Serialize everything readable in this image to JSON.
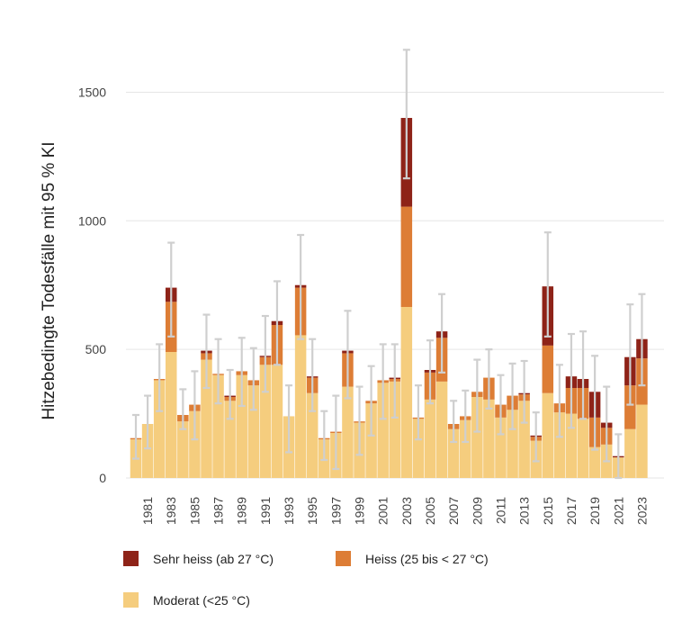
{
  "chart_data": {
    "type": "bar",
    "stacked": true,
    "ylabel": "Hitzebedingte Todesfälle mit 95 % KI",
    "ylim": [
      0,
      1650
    ],
    "yticks": [
      0,
      500,
      1000,
      1500
    ],
    "grid": true,
    "legend_position": "bottom",
    "x": [
      1980,
      1981,
      1982,
      1983,
      1984,
      1985,
      1986,
      1987,
      1988,
      1989,
      1990,
      1991,
      1992,
      1993,
      1994,
      1995,
      1996,
      1997,
      1998,
      1999,
      2000,
      2001,
      2002,
      2003,
      2004,
      2005,
      2006,
      2007,
      2008,
      2009,
      2010,
      2011,
      2012,
      2013,
      2014,
      2015,
      2016,
      2017,
      2018,
      2019,
      2020,
      2021,
      2022,
      2023
    ],
    "xtick_labels": [
      "1981",
      "1983",
      "1985",
      "1987",
      "1989",
      "1991",
      "1993",
      "1995",
      "1997",
      "1999",
      "2001",
      "2003",
      "2005",
      "2007",
      "2009",
      "2011",
      "2013",
      "2015",
      "2017",
      "2019",
      "2021",
      "2023"
    ],
    "series": [
      {
        "name": "Moderat (<25 °C)",
        "color": "#f5cd7e",
        "values": [
          150,
          210,
          380,
          490,
          220,
          260,
          460,
          400,
          300,
          400,
          360,
          440,
          440,
          240,
          555,
          330,
          150,
          175,
          355,
          215,
          290,
          370,
          375,
          665,
          230,
          305,
          375,
          190,
          225,
          315,
          305,
          235,
          265,
          300,
          145,
          330,
          255,
          250,
          230,
          120,
          130,
          80,
          190,
          285
        ]
      },
      {
        "name": "Heiss (25 bis < 27 °C)",
        "color": "#dd7d35",
        "values": [
          5,
          0,
          5,
          195,
          25,
          25,
          25,
          5,
          15,
          15,
          20,
          30,
          155,
          0,
          185,
          60,
          5,
          5,
          130,
          5,
          10,
          10,
          10,
          390,
          5,
          105,
          170,
          20,
          15,
          20,
          85,
          50,
          55,
          25,
          15,
          185,
          35,
          100,
          120,
          115,
          65,
          0,
          170,
          180
        ]
      },
      {
        "name": "Sehr heiss (ab 27 °C)",
        "color": "#8e2318",
        "values": [
          0,
          0,
          0,
          55,
          0,
          0,
          10,
          0,
          5,
          0,
          0,
          5,
          15,
          0,
          10,
          5,
          0,
          0,
          10,
          0,
          0,
          0,
          5,
          345,
          0,
          10,
          25,
          0,
          0,
          0,
          0,
          0,
          0,
          5,
          5,
          230,
          0,
          45,
          35,
          100,
          20,
          5,
          110,
          75
        ]
      }
    ],
    "ci_lower": [
      75,
      115,
      260,
      550,
      190,
      150,
      350,
      290,
      230,
      280,
      265,
      335,
      440,
      100,
      540,
      260,
      70,
      35,
      310,
      90,
      165,
      230,
      235,
      1165,
      150,
      290,
      410,
      140,
      140,
      180,
      270,
      170,
      190,
      215,
      65,
      550,
      160,
      195,
      230,
      110,
      65,
      0,
      285,
      360
    ],
    "ci_upper": [
      245,
      320,
      520,
      915,
      345,
      415,
      635,
      540,
      420,
      545,
      505,
      630,
      765,
      360,
      945,
      540,
      260,
      320,
      650,
      355,
      435,
      520,
      520,
      1665,
      360,
      535,
      715,
      300,
      340,
      460,
      500,
      400,
      445,
      455,
      255,
      955,
      440,
      560,
      570,
      475,
      355,
      170,
      675,
      715
    ]
  },
  "legend": {
    "items": [
      {
        "label": "Sehr heiss (ab 27 °C)",
        "color": "#8e2318"
      },
      {
        "label": "Heiss (25 bis < 27 °C)",
        "color": "#dd7d35"
      },
      {
        "label": "Moderat (<25 °C)",
        "color": "#f5cd7e"
      }
    ]
  }
}
